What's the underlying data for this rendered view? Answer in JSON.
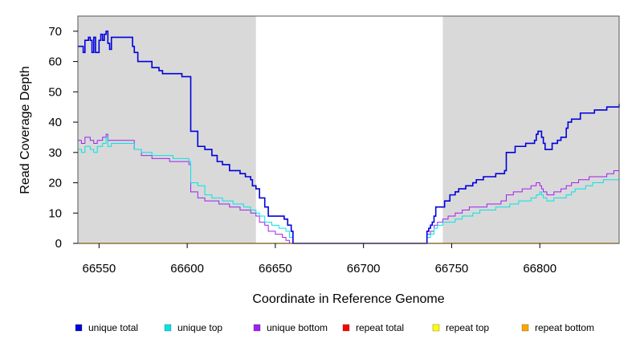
{
  "chart_data": {
    "type": "line",
    "title": "",
    "xlabel": "Coordinate in Reference Genome",
    "ylabel": "Read Coverage Depth",
    "xlim": [
      66538,
      66845
    ],
    "ylim": [
      0,
      75
    ],
    "x_ticks": [
      66550,
      66600,
      66650,
      66700,
      66750,
      66800
    ],
    "y_ticks": [
      0,
      10,
      20,
      30,
      40,
      50,
      60,
      70
    ],
    "shaded_regions": [
      {
        "from": 66538,
        "to": 66639,
        "color": "#d9d9d9"
      },
      {
        "from": 66745,
        "to": 66845,
        "color": "#d9d9d9"
      }
    ],
    "background_color": "#ffffff",
    "step": true,
    "series": [
      {
        "name": "unique total",
        "color": "#0000dd",
        "width": 1.6,
        "points": [
          [
            66538,
            65
          ],
          [
            66541,
            63
          ],
          [
            66542,
            67
          ],
          [
            66544,
            68
          ],
          [
            66545,
            67
          ],
          [
            66546,
            63
          ],
          [
            66547,
            68
          ],
          [
            66548,
            63
          ],
          [
            66550,
            67
          ],
          [
            66551,
            69
          ],
          [
            66552,
            67
          ],
          [
            66553,
            69
          ],
          [
            66554,
            70
          ],
          [
            66555,
            66
          ],
          [
            66556,
            64
          ],
          [
            66557,
            68
          ],
          [
            66568,
            68
          ],
          [
            66569,
            65
          ],
          [
            66570,
            63
          ],
          [
            66572,
            60
          ],
          [
            66580,
            58
          ],
          [
            66584,
            57
          ],
          [
            66586,
            56
          ],
          [
            66597,
            55
          ],
          [
            66601,
            55
          ],
          [
            66602,
            37
          ],
          [
            66606,
            32
          ],
          [
            66610,
            31
          ],
          [
            66614,
            29
          ],
          [
            66617,
            27
          ],
          [
            66620,
            26
          ],
          [
            66624,
            24
          ],
          [
            66630,
            23
          ],
          [
            66633,
            22
          ],
          [
            66636,
            21
          ],
          [
            66637,
            19
          ],
          [
            66639,
            18
          ],
          [
            66641,
            15
          ],
          [
            66644,
            12
          ],
          [
            66646,
            9
          ],
          [
            66655,
            8
          ],
          [
            66657,
            6
          ],
          [
            66659,
            4
          ],
          [
            66660,
            0
          ],
          [
            66735,
            0
          ],
          [
            66736,
            4
          ],
          [
            66737,
            5
          ],
          [
            66738,
            6
          ],
          [
            66739,
            7
          ],
          [
            66740,
            9
          ],
          [
            66741,
            12
          ],
          [
            66746,
            14
          ],
          [
            66749,
            16
          ],
          [
            66752,
            17
          ],
          [
            66754,
            18
          ],
          [
            66758,
            19
          ],
          [
            66762,
            20
          ],
          [
            66764,
            21
          ],
          [
            66768,
            22
          ],
          [
            66775,
            23
          ],
          [
            66780,
            24
          ],
          [
            66781,
            30
          ],
          [
            66786,
            32
          ],
          [
            66792,
            33
          ],
          [
            66797,
            34
          ],
          [
            66798,
            36
          ],
          [
            66799,
            37
          ],
          [
            66801,
            35
          ],
          [
            66802,
            33
          ],
          [
            66803,
            31
          ],
          [
            66806,
            31
          ],
          [
            66807,
            33
          ],
          [
            66809,
            33
          ],
          [
            66810,
            34
          ],
          [
            66812,
            35
          ],
          [
            66815,
            38
          ],
          [
            66816,
            40
          ],
          [
            66818,
            41
          ],
          [
            66823,
            43
          ],
          [
            66831,
            44
          ],
          [
            66838,
            45
          ],
          [
            66845,
            46
          ]
        ]
      },
      {
        "name": "unique top",
        "color": "#00e5e5",
        "width": 1.0,
        "points": [
          [
            66538,
            31
          ],
          [
            66540,
            30
          ],
          [
            66542,
            32
          ],
          [
            66545,
            31
          ],
          [
            66547,
            30
          ],
          [
            66549,
            32
          ],
          [
            66552,
            33
          ],
          [
            66554,
            35
          ],
          [
            66555,
            32
          ],
          [
            66557,
            33
          ],
          [
            66568,
            33
          ],
          [
            66570,
            31
          ],
          [
            66574,
            30
          ],
          [
            66580,
            29
          ],
          [
            66590,
            29
          ],
          [
            66592,
            28
          ],
          [
            66598,
            28
          ],
          [
            66601,
            27
          ],
          [
            66602,
            20
          ],
          [
            66606,
            19
          ],
          [
            66610,
            16
          ],
          [
            66614,
            15
          ],
          [
            66620,
            14
          ],
          [
            66626,
            13
          ],
          [
            66632,
            12
          ],
          [
            66636,
            11
          ],
          [
            66639,
            10
          ],
          [
            66641,
            9
          ],
          [
            66644,
            7
          ],
          [
            66648,
            6
          ],
          [
            66652,
            5
          ],
          [
            66656,
            4
          ],
          [
            66658,
            2
          ],
          [
            66660,
            0
          ],
          [
            66735,
            0
          ],
          [
            66736,
            2
          ],
          [
            66738,
            3
          ],
          [
            66740,
            5
          ],
          [
            66742,
            6
          ],
          [
            66745,
            7
          ],
          [
            66750,
            7
          ],
          [
            66752,
            8
          ],
          [
            66756,
            9
          ],
          [
            66762,
            10
          ],
          [
            66766,
            11
          ],
          [
            66770,
            11
          ],
          [
            66775,
            12
          ],
          [
            66780,
            12
          ],
          [
            66783,
            13
          ],
          [
            66788,
            14
          ],
          [
            66795,
            15
          ],
          [
            66798,
            16
          ],
          [
            66800,
            17
          ],
          [
            66801,
            16
          ],
          [
            66802,
            15
          ],
          [
            66804,
            14
          ],
          [
            66808,
            15
          ],
          [
            66812,
            15
          ],
          [
            66815,
            16
          ],
          [
            66818,
            17
          ],
          [
            66820,
            18
          ],
          [
            66826,
            19
          ],
          [
            66830,
            20
          ],
          [
            66834,
            20
          ],
          [
            66836,
            21
          ],
          [
            66845,
            21
          ]
        ]
      },
      {
        "name": "unique bottom",
        "color": "#a020f0",
        "width": 1.0,
        "points": [
          [
            66538,
            34
          ],
          [
            66540,
            33
          ],
          [
            66542,
            35
          ],
          [
            66545,
            34
          ],
          [
            66547,
            33
          ],
          [
            66549,
            34
          ],
          [
            66552,
            35
          ],
          [
            66554,
            36
          ],
          [
            66555,
            34
          ],
          [
            66557,
            34
          ],
          [
            66568,
            34
          ],
          [
            66570,
            31
          ],
          [
            66574,
            29
          ],
          [
            66580,
            28
          ],
          [
            66586,
            28
          ],
          [
            66590,
            27
          ],
          [
            66598,
            27
          ],
          [
            66601,
            26
          ],
          [
            66602,
            17
          ],
          [
            66606,
            15
          ],
          [
            66610,
            14
          ],
          [
            66614,
            14
          ],
          [
            66618,
            13
          ],
          [
            66624,
            12
          ],
          [
            66630,
            11
          ],
          [
            66636,
            10
          ],
          [
            66639,
            9
          ],
          [
            66641,
            7
          ],
          [
            66644,
            6
          ],
          [
            66646,
            4
          ],
          [
            66650,
            3
          ],
          [
            66654,
            2
          ],
          [
            66656,
            1
          ],
          [
            66658,
            0
          ],
          [
            66735,
            0
          ],
          [
            66736,
            3
          ],
          [
            66738,
            4
          ],
          [
            66740,
            6
          ],
          [
            66742,
            7
          ],
          [
            66745,
            8
          ],
          [
            66748,
            9
          ],
          [
            66752,
            10
          ],
          [
            66756,
            11
          ],
          [
            66760,
            12
          ],
          [
            66764,
            12
          ],
          [
            66770,
            13
          ],
          [
            66778,
            14
          ],
          [
            66781,
            16
          ],
          [
            66785,
            17
          ],
          [
            66790,
            18
          ],
          [
            66795,
            19
          ],
          [
            66798,
            20
          ],
          [
            66800,
            19
          ],
          [
            66801,
            18
          ],
          [
            66802,
            17
          ],
          [
            66804,
            16
          ],
          [
            66808,
            17
          ],
          [
            66812,
            18
          ],
          [
            66815,
            19
          ],
          [
            66818,
            20
          ],
          [
            66822,
            21
          ],
          [
            66828,
            22
          ],
          [
            66834,
            22
          ],
          [
            66838,
            23
          ],
          [
            66842,
            24
          ],
          [
            66845,
            24
          ]
        ]
      },
      {
        "name": "repeat total",
        "color": "#ff0000",
        "width": 1.0,
        "points": [
          [
            66538,
            0
          ],
          [
            66845,
            0
          ]
        ]
      },
      {
        "name": "repeat top",
        "color": "#ffff00",
        "width": 1.0,
        "points": [
          [
            66538,
            0
          ],
          [
            66845,
            0
          ]
        ]
      },
      {
        "name": "repeat bottom",
        "color": "#ffa500",
        "width": 1.4,
        "points": [
          [
            66538,
            0
          ],
          [
            66845,
            0
          ]
        ]
      }
    ],
    "legend": {
      "placement": "bottom",
      "entries": [
        "unique total",
        "unique top",
        "unique bottom",
        "repeat total",
        "repeat top",
        "repeat bottom"
      ]
    }
  }
}
